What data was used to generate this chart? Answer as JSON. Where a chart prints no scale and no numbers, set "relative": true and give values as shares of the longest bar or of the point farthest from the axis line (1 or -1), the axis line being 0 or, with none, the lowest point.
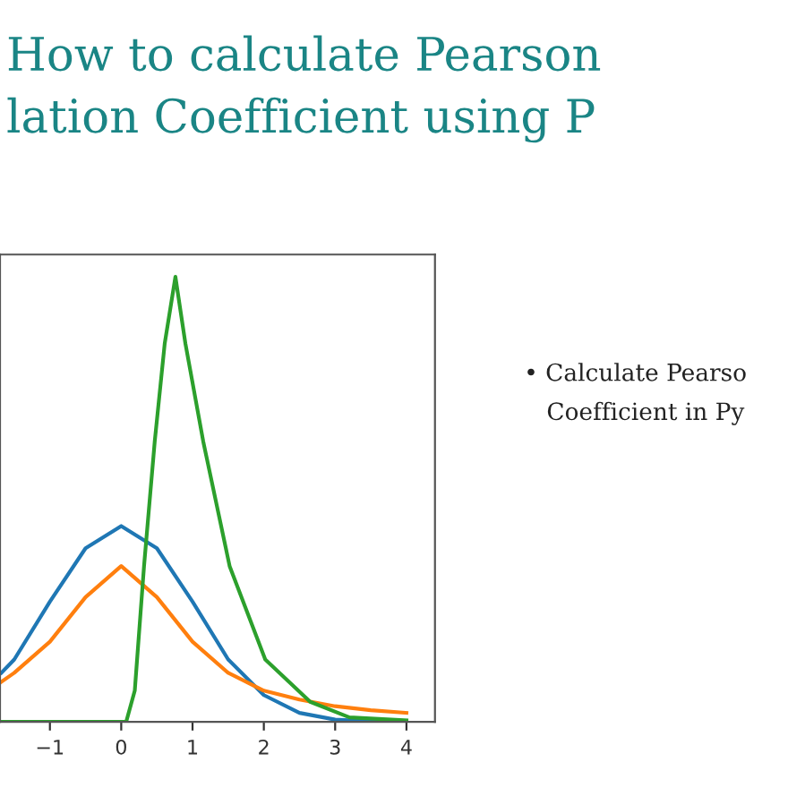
{
  "chart_data": {
    "type": "line",
    "title": "How to calculate Pearson\nlation Coefficient using P",
    "relative": true,
    "xlim": [
      -1.7,
      4.4
    ],
    "xticks": [
      -1,
      0,
      1,
      2,
      3,
      4
    ],
    "tick_labels": "x",
    "grid": false,
    "legend": false,
    "annotations": [
      "• Calculate Pearso\n   Coefficient in Py"
    ],
    "series": [
      {
        "color": "#1f77b4",
        "x": [
          -1.68,
          -1.5,
          -1,
          -0.5,
          0,
          0.5,
          1,
          1.5,
          2,
          2.5,
          3,
          3.5,
          4
        ],
        "values": [
          0.11,
          0.14,
          0.27,
          0.39,
          0.44,
          0.39,
          0.27,
          0.14,
          0.06,
          0.02,
          0.005,
          0.001,
          0
        ]
      },
      {
        "color": "#ff7f0e",
        "x": [
          -1.68,
          -1.5,
          -1,
          -0.5,
          0,
          0.5,
          1,
          1.5,
          2,
          2.5,
          3,
          3.5,
          4
        ],
        "values": [
          0.09,
          0.11,
          0.18,
          0.28,
          0.35,
          0.28,
          0.18,
          0.11,
          0.07,
          0.05,
          0.035,
          0.026,
          0.02
        ]
      },
      {
        "color": "#2ca02c",
        "x": [
          -1.68,
          0,
          0.07,
          0.19,
          0.32,
          0.47,
          0.61,
          0.76,
          0.9,
          1.15,
          1.52,
          2.02,
          2.65,
          3.2,
          4
        ],
        "values": [
          0,
          0,
          0,
          0.07,
          0.35,
          0.63,
          0.85,
          1.0,
          0.85,
          0.63,
          0.35,
          0.14,
          0.045,
          0.01,
          0.003
        ]
      }
    ]
  }
}
